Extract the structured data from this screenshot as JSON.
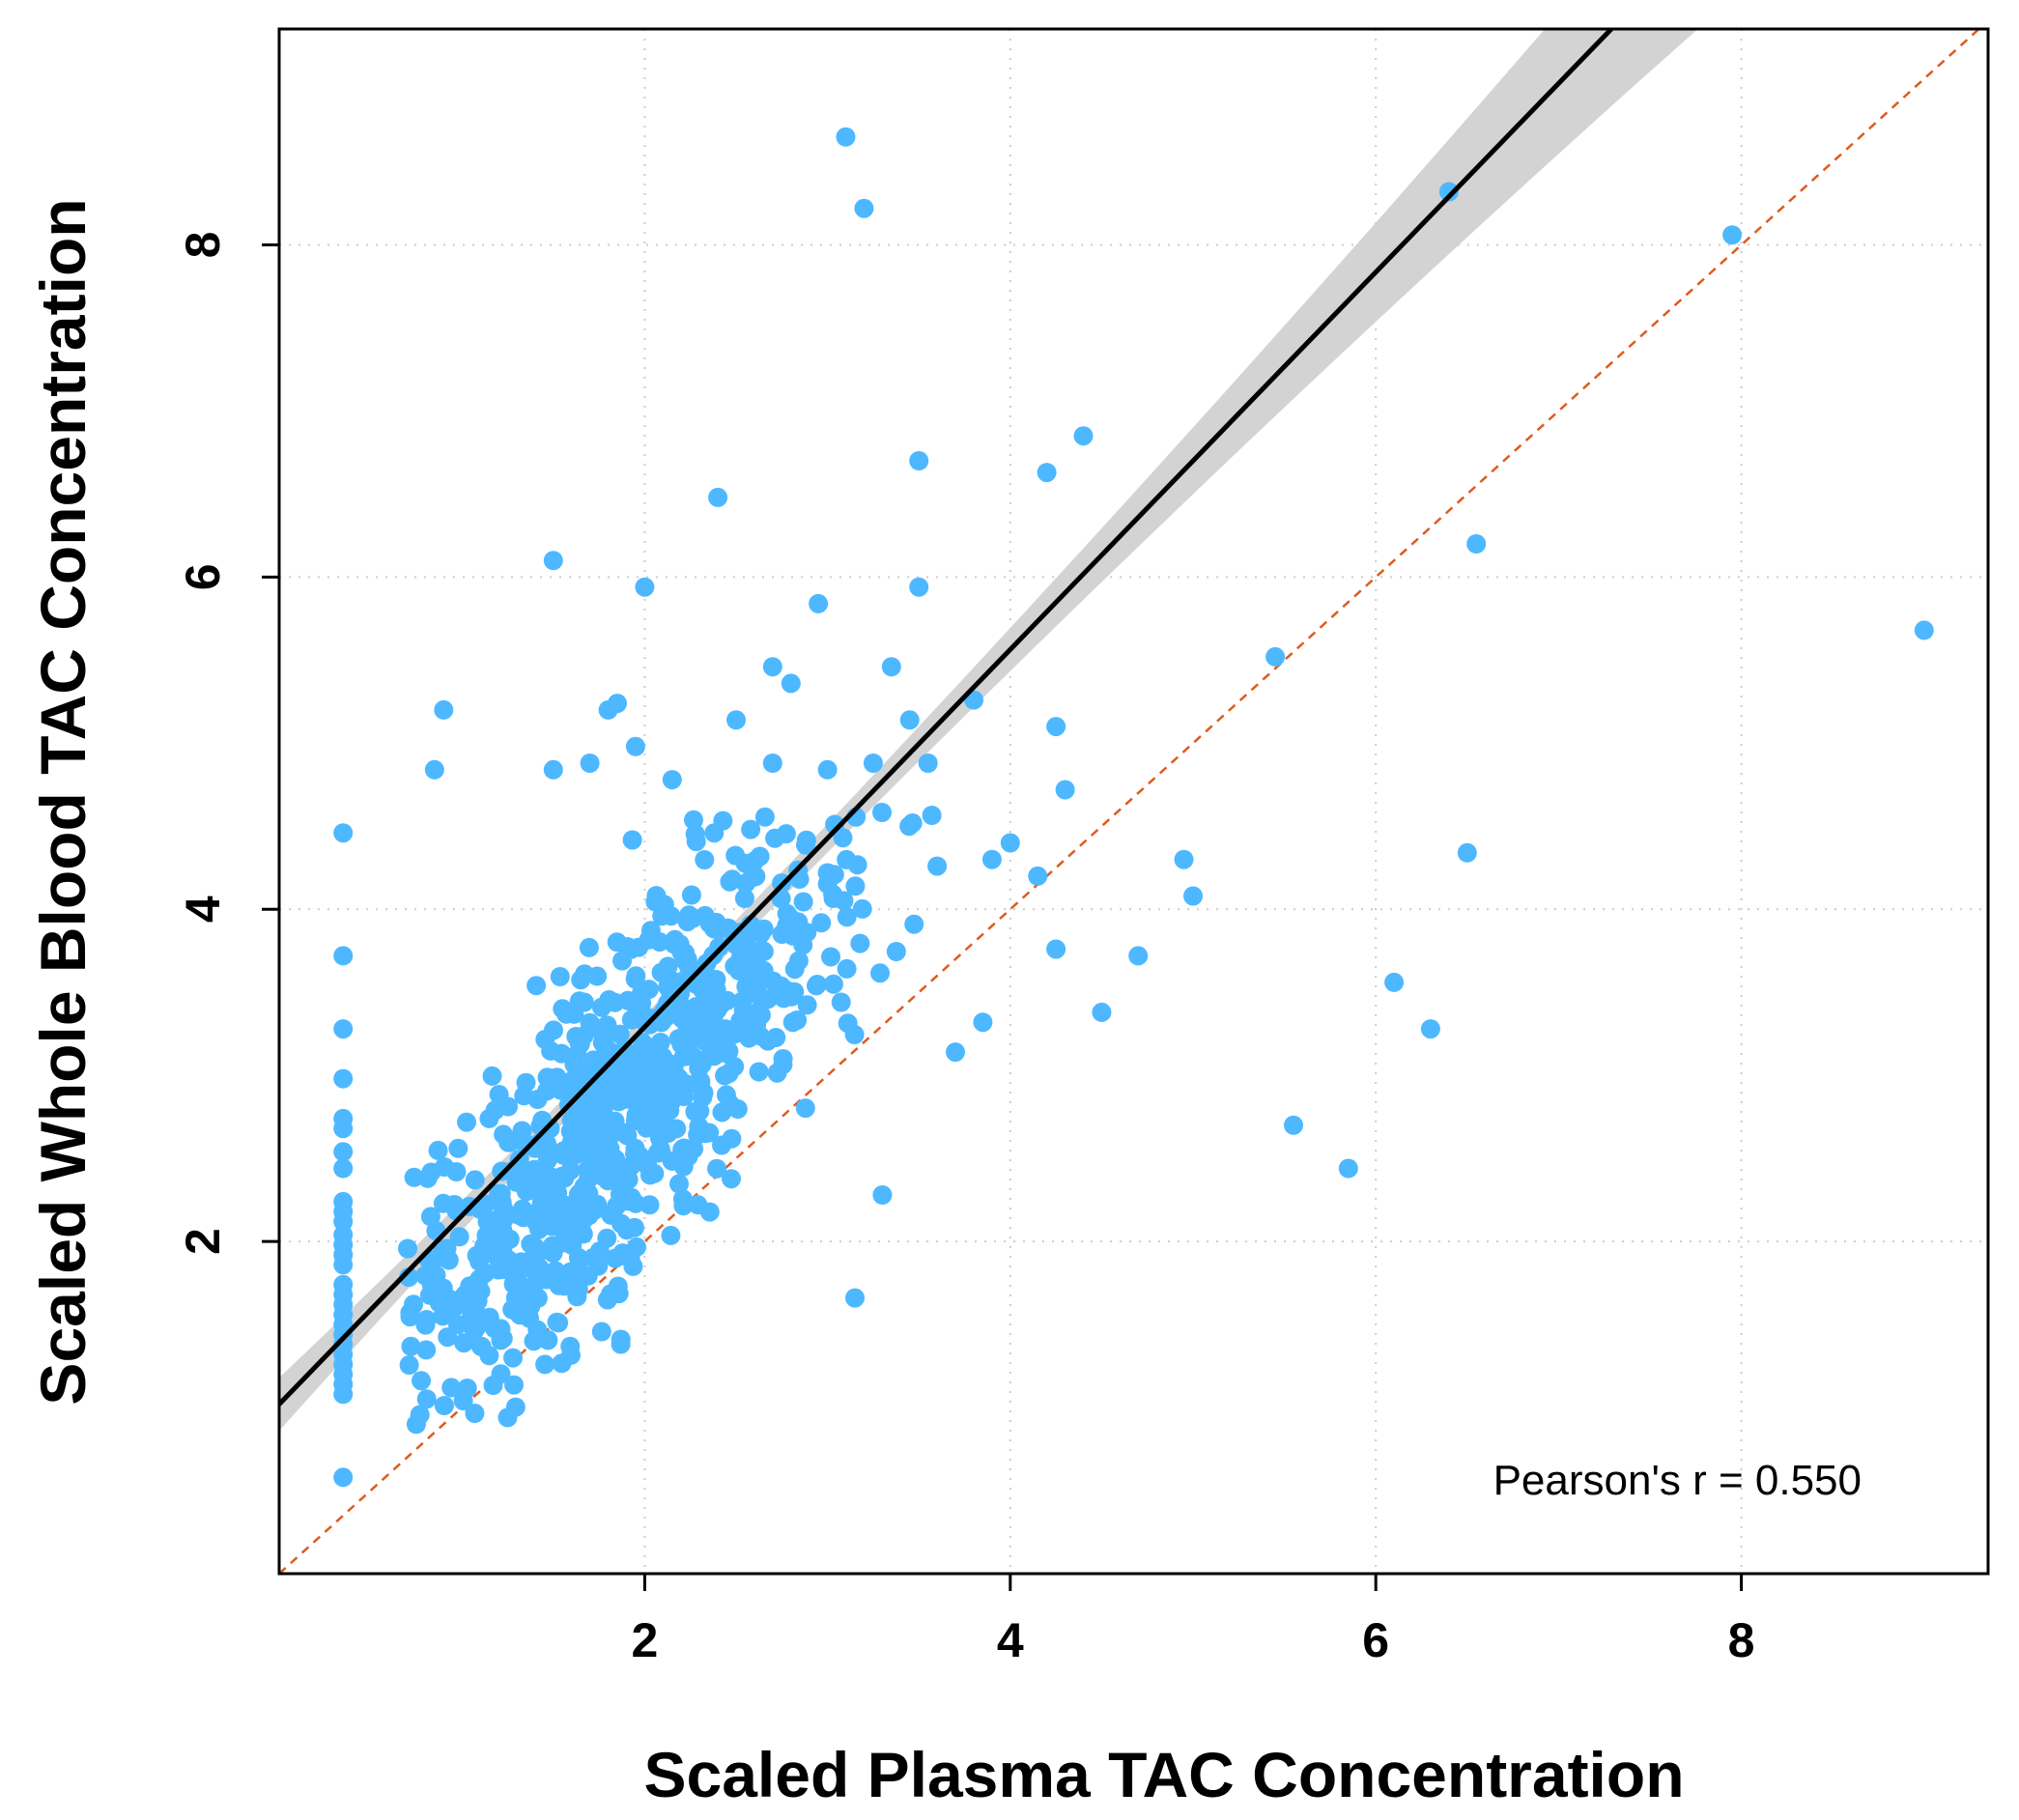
{
  "chart_data": {
    "type": "scatter",
    "xlabel": "Scaled Plasma TAC Concentration",
    "ylabel": "Scaled Whole Blood TAC Concentration",
    "xlim": [
      0,
      9.35
    ],
    "ylim": [
      0,
      9.3
    ],
    "x_ticks": [
      2,
      4,
      6,
      8
    ],
    "y_ticks": [
      2,
      4,
      6,
      8
    ],
    "x_tick_labels": [
      "2",
      "4",
      "6",
      "8"
    ],
    "y_tick_labels": [
      "2",
      "4",
      "6",
      "8"
    ],
    "grid": true,
    "annotation": "Pearson's r = 0.550",
    "point_color": "#4db8ff",
    "regression": {
      "slope": 1.136,
      "intercept": 1.02,
      "band_low_at_xmin": 0.86,
      "band_high_at_xmin": 1.18,
      "band_low_at_xmax": 9.3,
      "band_high_at_xmax": 10.95,
      "x_center": 1.9,
      "color": "#000000",
      "band_color": "#d3d3d3"
    },
    "identity_line": {
      "slope": 1,
      "intercept": 0,
      "color": "#e05a1e"
    },
    "outliers": [
      [
        3.1,
        8.65
      ],
      [
        3.2,
        8.22
      ],
      [
        6.4,
        8.32
      ],
      [
        7.95,
        8.06
      ],
      [
        4.4,
        6.85
      ],
      [
        4.2,
        6.63
      ],
      [
        3.5,
        6.7
      ],
      [
        2.4,
        6.48
      ],
      [
        6.55,
        6.2
      ],
      [
        1.5,
        6.1
      ],
      [
        2.0,
        5.94
      ],
      [
        3.5,
        5.94
      ],
      [
        2.95,
        5.84
      ],
      [
        9.0,
        5.68
      ],
      [
        5.45,
        5.52
      ],
      [
        2.7,
        5.46
      ],
      [
        3.35,
        5.46
      ],
      [
        2.8,
        5.36
      ],
      [
        0.9,
        5.2
      ],
      [
        1.8,
        5.2
      ],
      [
        1.85,
        5.24
      ],
      [
        2.5,
        5.14
      ],
      [
        3.45,
        5.14
      ],
      [
        3.8,
        5.26
      ],
      [
        4.25,
        5.1
      ],
      [
        1.95,
        4.98
      ],
      [
        0.85,
        4.84
      ],
      [
        1.5,
        4.84
      ],
      [
        1.7,
        4.88
      ],
      [
        2.7,
        4.88
      ],
      [
        3.0,
        4.84
      ],
      [
        3.25,
        4.88
      ],
      [
        3.55,
        4.88
      ],
      [
        2.15,
        4.78
      ],
      [
        4.3,
        4.72
      ],
      [
        0.35,
        4.46
      ],
      [
        4.95,
        4.3
      ],
      [
        6.5,
        4.34
      ],
      [
        5.0,
        4.08
      ],
      [
        4.15,
        4.2
      ],
      [
        4.0,
        4.4
      ],
      [
        3.9,
        4.3
      ],
      [
        3.6,
        4.26
      ],
      [
        4.25,
        3.76
      ],
      [
        4.7,
        3.72
      ],
      [
        6.1,
        3.56
      ],
      [
        6.3,
        3.28
      ],
      [
        4.5,
        3.38
      ],
      [
        3.85,
        3.32
      ],
      [
        3.7,
        3.14
      ],
      [
        5.55,
        2.7
      ],
      [
        5.85,
        2.44
      ],
      [
        3.3,
        2.28
      ],
      [
        3.15,
        1.66
      ],
      [
        0.35,
        0.58
      ],
      [
        1.25,
        0.94
      ],
      [
        0.75,
        0.9
      ]
    ],
    "left_column": {
      "x": 0.35,
      "y": [
        3.72,
        3.28,
        2.98,
        2.74,
        2.68,
        2.54,
        2.44,
        2.24,
        2.18,
        2.12,
        2.04,
        1.98,
        1.92,
        1.86,
        1.74,
        1.68,
        1.62,
        1.56,
        1.5,
        1.44,
        1.38,
        1.32,
        1.26,
        1.2,
        1.14,
        1.08
      ]
    },
    "main_cluster": {
      "count": 760,
      "seed": 7,
      "x_center": 1.9,
      "x_spread": 0.68,
      "y_intercept": 0.55,
      "y_slope": 1.18,
      "y_spread": 0.52,
      "x_range": [
        0.7,
        3.95
      ],
      "y_range": [
        0.95,
        4.6
      ]
    }
  }
}
